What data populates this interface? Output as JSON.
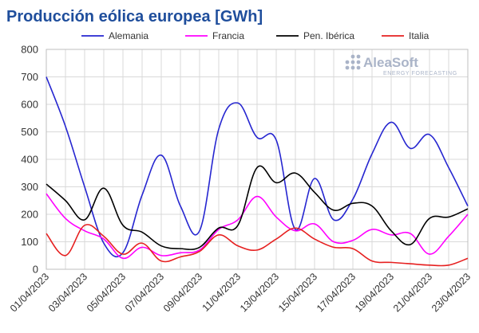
{
  "chart_data": {
    "type": "line",
    "title": "Producción eólica europea [GWh]",
    "xlabel": "",
    "ylabel": "",
    "ylim": [
      0,
      800
    ],
    "yticks": [
      0,
      100,
      200,
      300,
      400,
      500,
      600,
      700,
      800
    ],
    "x_tick_labels": [
      "01/04/2023",
      "03/04/2023",
      "05/04/2023",
      "07/04/2023",
      "09/04/2023",
      "11/04/2023",
      "13/04/2023",
      "15/04/2023",
      "17/04/2023",
      "19/04/2023",
      "21/04/2023",
      "23/04/2023"
    ],
    "x": [
      "01/04/2023",
      "02/04/2023",
      "03/04/2023",
      "04/04/2023",
      "05/04/2023",
      "06/04/2023",
      "07/04/2023",
      "08/04/2023",
      "09/04/2023",
      "10/04/2023",
      "11/04/2023",
      "12/04/2023",
      "13/04/2023",
      "14/04/2023",
      "15/04/2023",
      "16/04/2023",
      "17/04/2023",
      "18/04/2023",
      "19/04/2023",
      "20/04/2023",
      "21/04/2023",
      "22/04/2023",
      "23/04/2023"
    ],
    "grid": true,
    "legend_position": "top",
    "series": [
      {
        "name": "Alemania",
        "color": "#2626d0",
        "values": [
          700,
          520,
          300,
          95,
          60,
          270,
          415,
          230,
          140,
          510,
          605,
          480,
          470,
          145,
          330,
          180,
          255,
          420,
          535,
          440,
          490,
          370,
          230
        ]
      },
      {
        "name": "Francia",
        "color": "#ff00ff",
        "values": [
          275,
          185,
          140,
          110,
          40,
          80,
          50,
          60,
          70,
          145,
          180,
          265,
          190,
          140,
          165,
          100,
          105,
          145,
          125,
          130,
          55,
          120,
          200
        ]
      },
      {
        "name": "Pen. Ibérica",
        "color": "#000000",
        "values": [
          310,
          250,
          180,
          295,
          160,
          135,
          85,
          75,
          80,
          150,
          160,
          370,
          315,
          350,
          280,
          215,
          240,
          230,
          140,
          90,
          185,
          190,
          220
        ]
      },
      {
        "name": "Italia",
        "color": "#e62020",
        "values": [
          130,
          50,
          160,
          120,
          55,
          95,
          30,
          45,
          65,
          125,
          85,
          70,
          110,
          150,
          110,
          80,
          75,
          30,
          25,
          20,
          15,
          15,
          40
        ]
      }
    ]
  },
  "logo": {
    "brand": "AleaSoft",
    "tagline": "ENERGY FORECASTING"
  }
}
